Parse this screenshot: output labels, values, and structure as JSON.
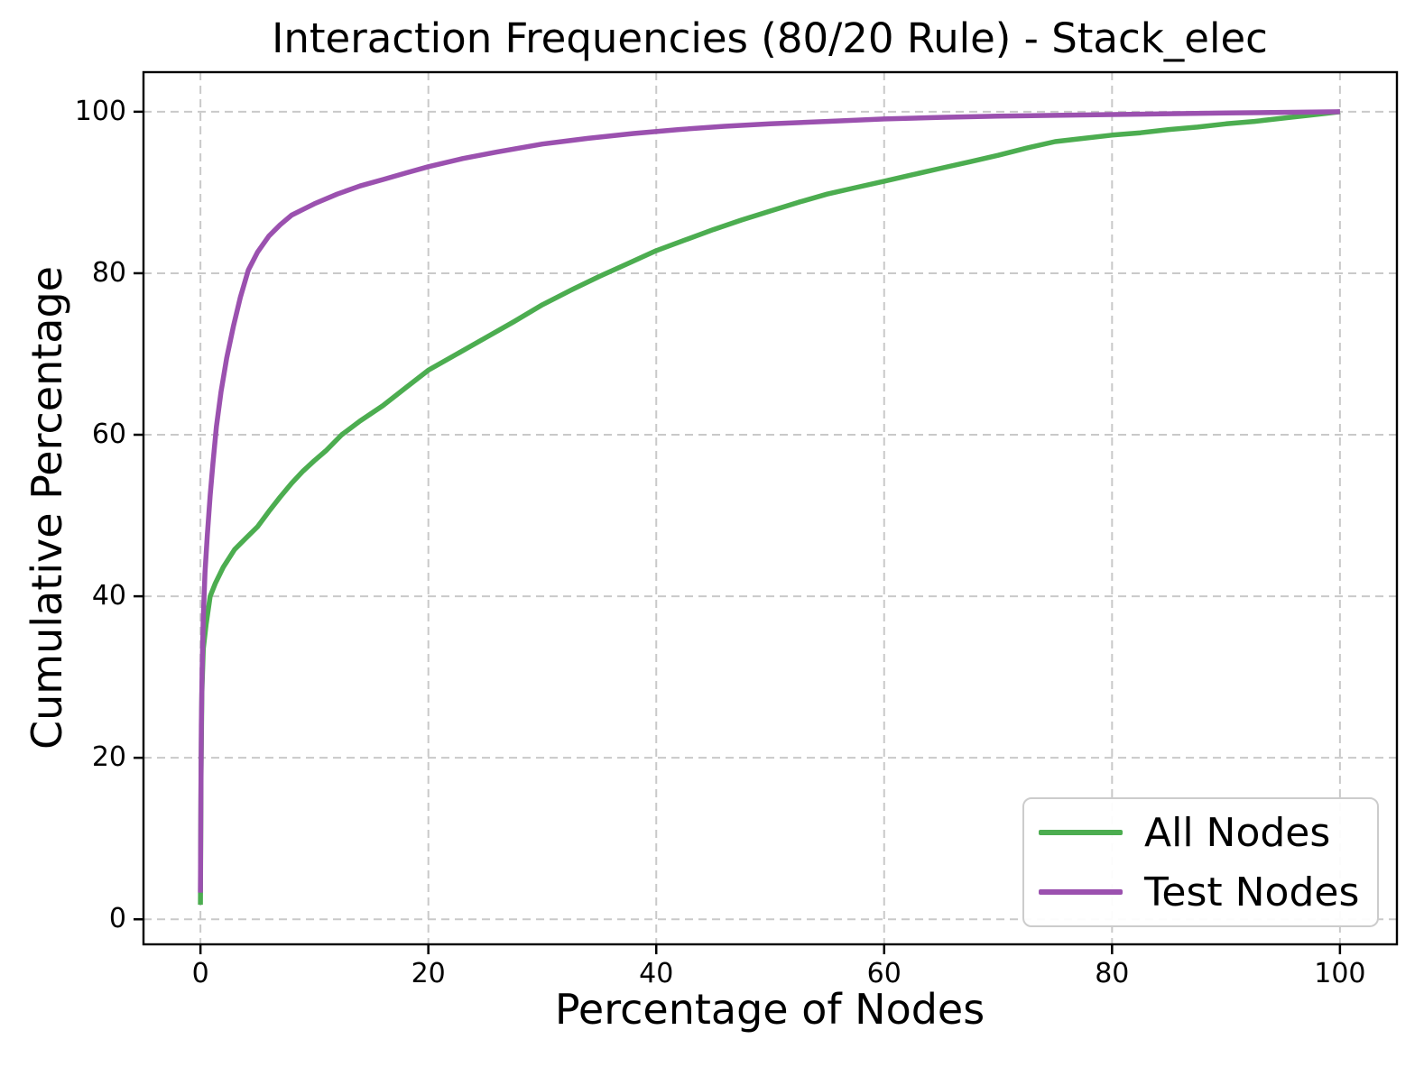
{
  "chart_data": {
    "type": "line",
    "title": "Interaction Frequencies (80/20 Rule) - Stack_elec",
    "xlabel": "Percentage of Nodes",
    "ylabel": "Cumulative Percentage",
    "xlim": [
      -5,
      105
    ],
    "ylim": [
      -3.1,
      104.9
    ],
    "xticks": [
      0,
      20,
      40,
      60,
      80,
      100
    ],
    "yticks": [
      0,
      20,
      40,
      60,
      80,
      100
    ],
    "grid": true,
    "grid_style": "dashed",
    "grid_color": "#c9c9c9",
    "legend_position": "lower right",
    "line_width": 5.5,
    "series": [
      {
        "name": "All Nodes",
        "color": "#4cad50",
        "points": [
          [
            0,
            1.8
          ],
          [
            0.05,
            18
          ],
          [
            0.12,
            28
          ],
          [
            0.25,
            33.5
          ],
          [
            0.5,
            36.5
          ],
          [
            0.85,
            40
          ],
          [
            1.3,
            41.6
          ],
          [
            2,
            43.6
          ],
          [
            3,
            45.8
          ],
          [
            4,
            47.2
          ],
          [
            5,
            48.6
          ],
          [
            6,
            50.5
          ],
          [
            7,
            52.3
          ],
          [
            8,
            54
          ],
          [
            9,
            55.5
          ],
          [
            10,
            56.8
          ],
          [
            11,
            58
          ],
          [
            12.4,
            60
          ],
          [
            14,
            61.7
          ],
          [
            16,
            63.6
          ],
          [
            18,
            65.8
          ],
          [
            20,
            68
          ],
          [
            22.5,
            70
          ],
          [
            25,
            72
          ],
          [
            27.5,
            74
          ],
          [
            30,
            76.1
          ],
          [
            32.5,
            77.9
          ],
          [
            35,
            79.6
          ],
          [
            37.5,
            81.2
          ],
          [
            40,
            82.8
          ],
          [
            42.5,
            84.1
          ],
          [
            45,
            85.4
          ],
          [
            47.5,
            86.6
          ],
          [
            50,
            87.7
          ],
          [
            52.5,
            88.8
          ],
          [
            55,
            89.8
          ],
          [
            57.5,
            90.6
          ],
          [
            60,
            91.4
          ],
          [
            62.5,
            92.2
          ],
          [
            65,
            93
          ],
          [
            67.5,
            93.8
          ],
          [
            70,
            94.6
          ],
          [
            72.5,
            95.5
          ],
          [
            75,
            96.3
          ],
          [
            77.5,
            96.7
          ],
          [
            80,
            97.1
          ],
          [
            82.5,
            97.4
          ],
          [
            85,
            97.8
          ],
          [
            87.5,
            98.1
          ],
          [
            90,
            98.5
          ],
          [
            92.5,
            98.8
          ],
          [
            95,
            99.2
          ],
          [
            97.5,
            99.6
          ],
          [
            100,
            100
          ]
        ]
      },
      {
        "name": "Test Nodes",
        "color": "#9b51af",
        "points": [
          [
            0,
            3.3
          ],
          [
            0.04,
            15
          ],
          [
            0.08,
            24
          ],
          [
            0.15,
            31
          ],
          [
            0.25,
            37.5
          ],
          [
            0.4,
            43
          ],
          [
            0.6,
            47.5
          ],
          [
            0.85,
            52.5
          ],
          [
            1.1,
            56.5
          ],
          [
            1.4,
            61
          ],
          [
            1.8,
            65.3
          ],
          [
            2.3,
            69.5
          ],
          [
            2.9,
            73.5
          ],
          [
            3.5,
            77
          ],
          [
            4.2,
            80.4
          ],
          [
            5,
            82.6
          ],
          [
            6,
            84.6
          ],
          [
            7,
            86
          ],
          [
            8,
            87.2
          ],
          [
            9,
            87.9
          ],
          [
            10,
            88.6
          ],
          [
            12,
            89.8
          ],
          [
            14,
            90.8
          ],
          [
            16,
            91.6
          ],
          [
            18,
            92.4
          ],
          [
            20,
            93.2
          ],
          [
            23,
            94.2
          ],
          [
            26,
            95
          ],
          [
            30,
            96
          ],
          [
            34,
            96.7
          ],
          [
            38,
            97.3
          ],
          [
            42,
            97.8
          ],
          [
            46,
            98.2
          ],
          [
            50,
            98.5
          ],
          [
            55,
            98.8
          ],
          [
            60,
            99.1
          ],
          [
            65,
            99.3
          ],
          [
            70,
            99.45
          ],
          [
            75,
            99.55
          ],
          [
            80,
            99.65
          ],
          [
            85,
            99.75
          ],
          [
            90,
            99.85
          ],
          [
            95,
            99.92
          ],
          [
            100,
            100
          ]
        ]
      }
    ]
  }
}
